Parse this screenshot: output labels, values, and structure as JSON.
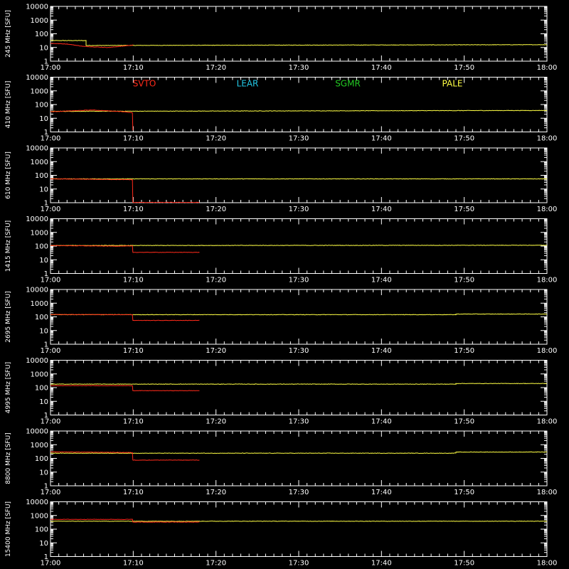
{
  "chart_data": {
    "type": "line",
    "x_ticks": [
      "17:00",
      "17:10",
      "17:20",
      "17:30",
      "17:40",
      "17:50",
      "18:00"
    ],
    "x_range_minutes": [
      0,
      60
    ],
    "y_scale": "log",
    "y_ticks": [
      "1",
      "10",
      "100",
      "1000",
      "10000"
    ],
    "y_range": [
      1,
      10000
    ],
    "legend": [
      {
        "name": "SVTO",
        "color": "#ff2a1a"
      },
      {
        "name": "LEAR",
        "color": "#22c8e6"
      },
      {
        "name": "SGMR",
        "color": "#22c822"
      },
      {
        "name": "PALE",
        "color": "#ffff44"
      }
    ],
    "panels": [
      {
        "ylabel": "245 MHz [SFU]",
        "series": [
          {
            "name": "PALE",
            "points": [
              [
                0,
                32
              ],
              [
                4.3,
                32
              ],
              [
                4.3,
                14
              ],
              [
                60,
                16
              ]
            ]
          },
          {
            "name": "SVTO",
            "points": [
              [
                0,
                20
              ],
              [
                2,
                18
              ],
              [
                4,
                12
              ],
              [
                7,
                10
              ],
              [
                9.5,
                14
              ],
              [
                10,
                15
              ]
            ]
          }
        ]
      },
      {
        "ylabel": "410 MHz [SFU]",
        "series": [
          {
            "name": "PALE",
            "points": [
              [
                0,
                32
              ],
              [
                60,
                37
              ]
            ]
          },
          {
            "name": "SVTO",
            "points": [
              [
                0,
                30
              ],
              [
                5,
                40
              ],
              [
                9,
                30
              ],
              [
                9.9,
                25
              ],
              [
                9.95,
                1.3
              ]
            ]
          }
        ]
      },
      {
        "ylabel": "610 MHz [SFU]",
        "series": [
          {
            "name": "PALE",
            "points": [
              [
                0,
                55
              ],
              [
                60,
                55
              ]
            ]
          },
          {
            "name": "SVTO",
            "points": [
              [
                0,
                55
              ],
              [
                9.9,
                48
              ],
              [
                9.95,
                1.05
              ],
              [
                18,
                1.05
              ]
            ]
          }
        ]
      },
      {
        "ylabel": "1415 MHz [SFU]",
        "series": [
          {
            "name": "PALE",
            "points": [
              [
                0,
                110
              ],
              [
                60,
                115
              ]
            ]
          },
          {
            "name": "SVTO",
            "points": [
              [
                0,
                110
              ],
              [
                7,
                100
              ],
              [
                9.9,
                100
              ],
              [
                9.95,
                35
              ],
              [
                18,
                35
              ]
            ]
          }
        ]
      },
      {
        "ylabel": "2695 MHz [SFU]",
        "series": [
          {
            "name": "PALE",
            "points": [
              [
                0,
                145
              ],
              [
                49,
                145
              ],
              [
                49,
                160
              ],
              [
                60,
                160
              ]
            ]
          },
          {
            "name": "SVTO",
            "points": [
              [
                0,
                150
              ],
              [
                9.9,
                145
              ],
              [
                9.95,
                55
              ],
              [
                18,
                55
              ]
            ]
          }
        ]
      },
      {
        "ylabel": "4995 MHz [SFU]",
        "series": [
          {
            "name": "PALE",
            "points": [
              [
                0,
                180
              ],
              [
                49,
                180
              ],
              [
                49,
                200
              ],
              [
                60,
                200
              ]
            ]
          },
          {
            "name": "SVTO",
            "points": [
              [
                0,
                140
              ],
              [
                9.9,
                140
              ],
              [
                9.95,
                60
              ],
              [
                18,
                60
              ]
            ]
          }
        ]
      },
      {
        "ylabel": "8800 MHz [SFU]",
        "series": [
          {
            "name": "PALE",
            "points": [
              [
                0,
                240
              ],
              [
                49,
                240
              ],
              [
                49,
                290
              ],
              [
                60,
                290
              ]
            ]
          },
          {
            "name": "SVTO",
            "points": [
              [
                0,
                300
              ],
              [
                9.9,
                270
              ],
              [
                9.95,
                75
              ],
              [
                18,
                75
              ]
            ]
          }
        ]
      },
      {
        "ylabel": "15400 MHz [SFU]",
        "series": [
          {
            "name": "PALE",
            "points": [
              [
                0,
                380
              ],
              [
                60,
                380
              ]
            ]
          },
          {
            "name": "SVTO",
            "points": [
              [
                0,
                520
              ],
              [
                9.9,
                520
              ],
              [
                9.95,
                330
              ],
              [
                18,
                330
              ]
            ]
          }
        ]
      }
    ]
  }
}
